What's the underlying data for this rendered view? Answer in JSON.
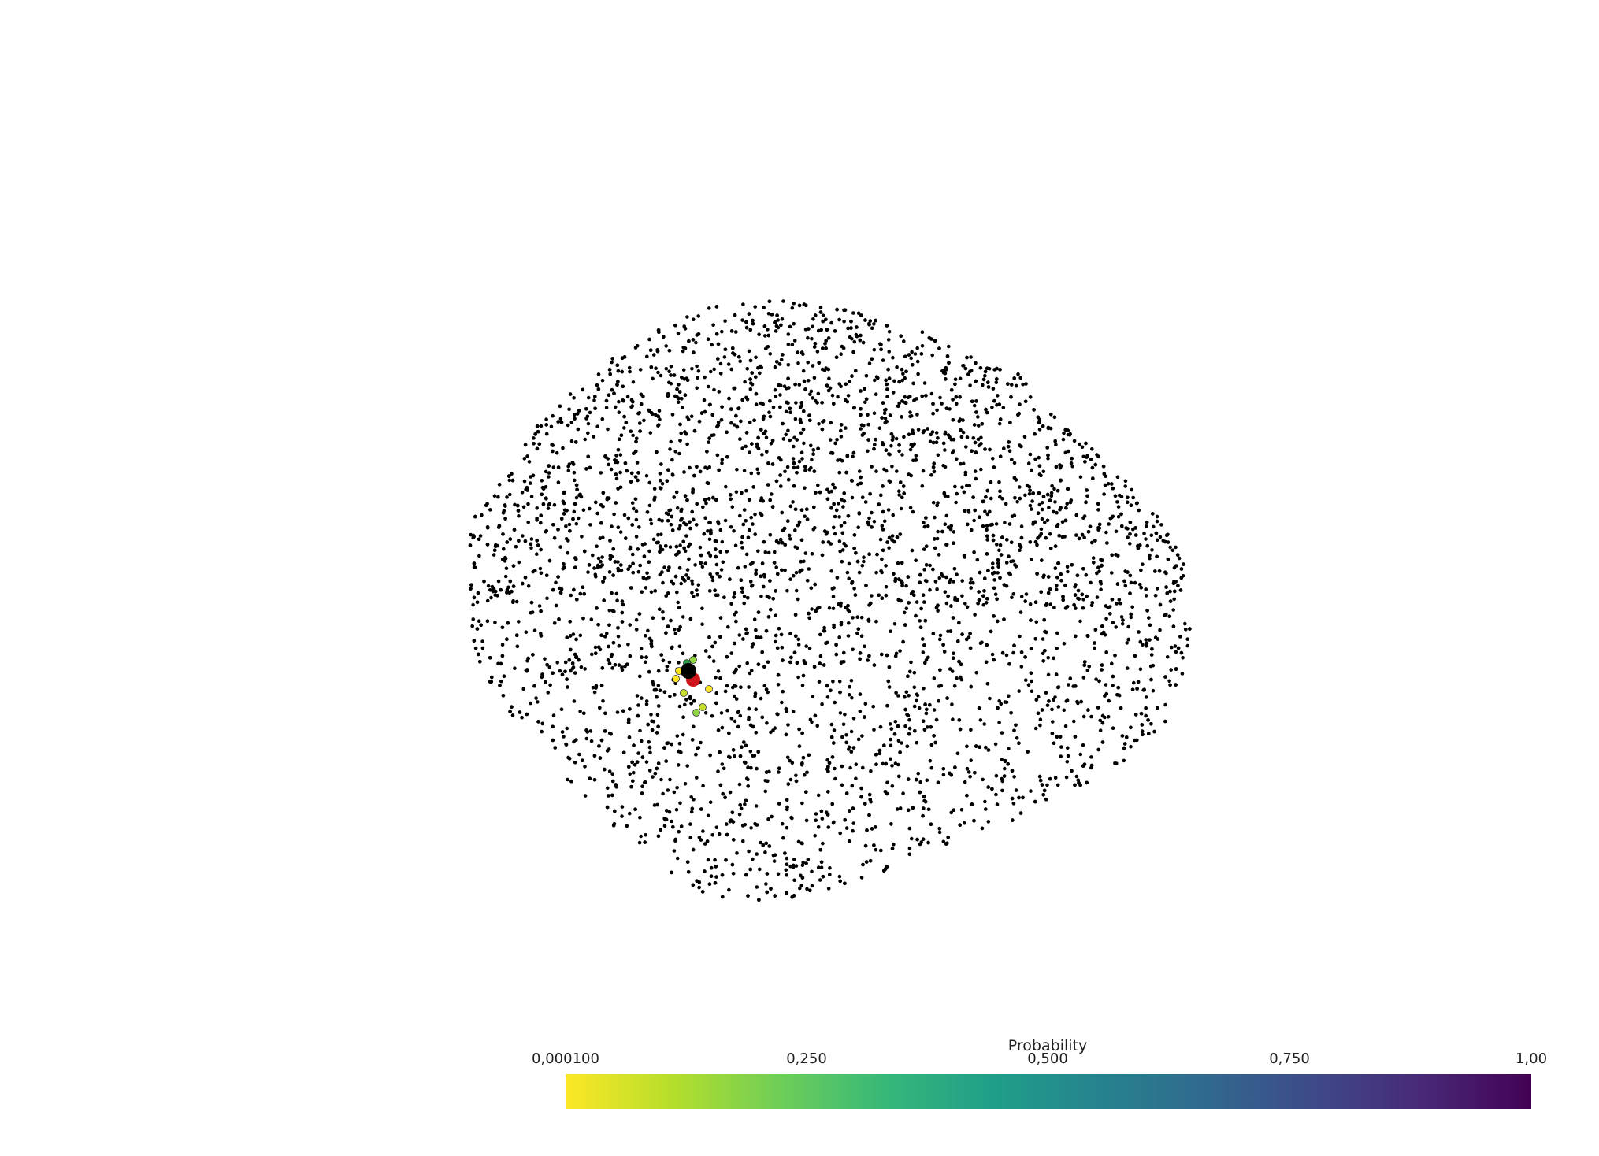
{
  "scene": {
    "background": "#ffffff",
    "point_color": "#000000",
    "highlight": {
      "main_point_color": "#000000",
      "secondary_point_color": "#d0161b",
      "neighbor_colors": [
        "#fde725",
        "#c8df2a",
        "#90d743",
        "#2a9d4a"
      ]
    }
  },
  "colorbar": {
    "title": "Probability",
    "colormap": "viridis",
    "ticks": [
      "0,000100",
      "0,250",
      "0,500",
      "0,750",
      "1,00"
    ],
    "range": [
      0.0001,
      1.0
    ],
    "stops": [
      "#fde725",
      "#b5de2b",
      "#6ece58",
      "#35b779",
      "#1f9e89",
      "#26828e",
      "#31688e",
      "#3e4989",
      "#482878",
      "#440154"
    ]
  }
}
